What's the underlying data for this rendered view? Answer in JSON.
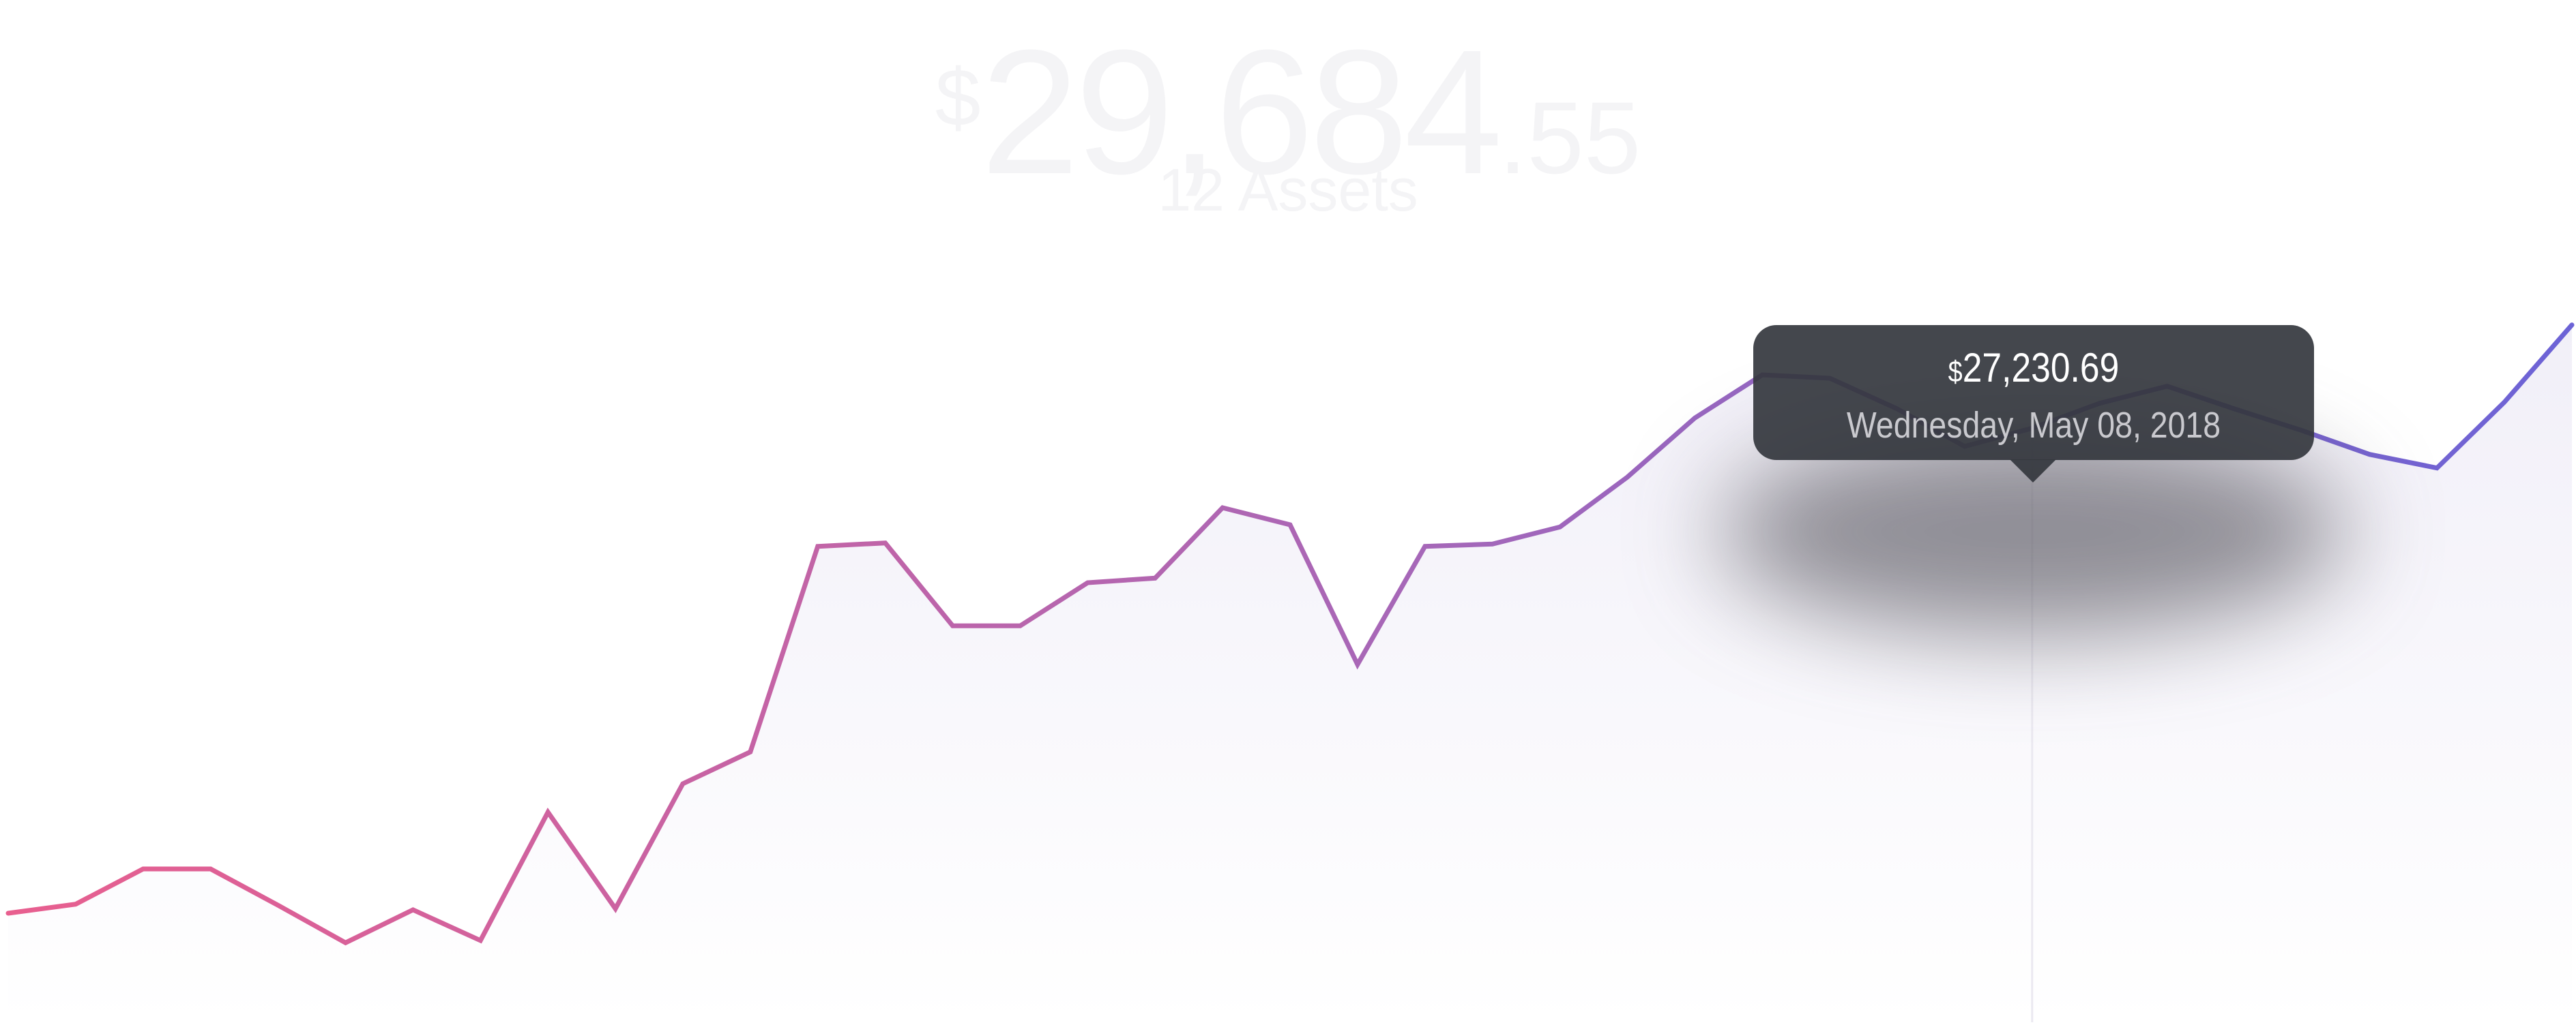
{
  "balance": {
    "currency": "$",
    "integer": "29,684",
    "decimal": ".55"
  },
  "assets_label": "12 Assets",
  "tooltip": {
    "currency": "$",
    "value": "27,230.69",
    "date": "Wednesday, May 08, 2018"
  },
  "colors": {
    "line_start": "#e85f8f",
    "line_mid": "#a667b8",
    "line_end": "#6c63d6",
    "area_top": "#f1eff8",
    "area_bottom": "#ffffff",
    "tooltip_bg": "#34373e"
  },
  "chart_data": {
    "type": "area",
    "title": "",
    "xlabel": "",
    "ylabel": "",
    "grid": false,
    "legend": "none",
    "ylim": [
      22000,
      31000
    ],
    "highlighted_point": {
      "index": 30,
      "date": "2018-05-08",
      "y": 27230.69
    },
    "series": [
      {
        "values": [
          22960,
          23040,
          23350,
          23350,
          23030,
          22700,
          22990,
          22720,
          23850,
          23000,
          24100,
          24380,
          26190,
          26220,
          25490,
          25490,
          25870,
          25910,
          26530,
          26380,
          25150,
          26190,
          26210,
          26360,
          26800,
          27320,
          27700,
          27670,
          27400,
          27070,
          27230,
          27450,
          27600,
          27400,
          27210,
          27000,
          26880,
          27460,
          28140
        ]
      }
    ]
  }
}
